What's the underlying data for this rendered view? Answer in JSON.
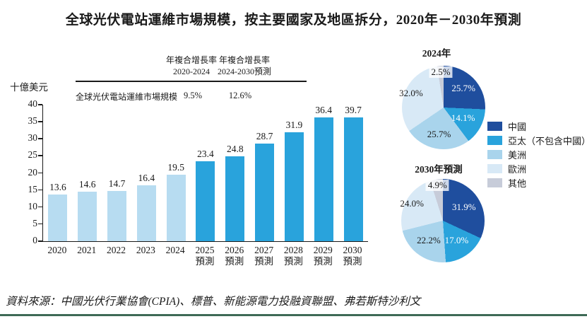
{
  "title": "全球光伏電站運維市場規模，按主要國家及地區拆分，2020年－2030年預測",
  "cagr_table": {
    "row_label": "全球光伏電站運維市場規模",
    "columns": [
      {
        "line1": "年複合增長率",
        "line2": "2020-2024",
        "value": "9.5%"
      },
      {
        "line1": "年複合增長率",
        "line2": "2024-2030預測",
        "value": "12.6%"
      }
    ]
  },
  "chart_data": [
    {
      "type": "bar",
      "title": "全球光伏電站運維市場規模",
      "ylabel": "十億美元",
      "ylim": [
        0,
        40
      ],
      "yticks": [
        0,
        5,
        10,
        15,
        20,
        25,
        30,
        35,
        40
      ],
      "grid": false,
      "categories": [
        "2020",
        "2021",
        "2022",
        "2023",
        "2024",
        "2025",
        "2026",
        "2027",
        "2028",
        "2029",
        "2030"
      ],
      "category_sublabels": [
        "",
        "",
        "",
        "",
        "",
        "預測",
        "預測",
        "預測",
        "預測",
        "預測",
        "預測"
      ],
      "values": [
        13.6,
        14.6,
        14.7,
        16.4,
        19.5,
        23.4,
        24.8,
        28.7,
        31.9,
        36.4,
        39.7
      ],
      "value_labels": [
        "13.6",
        "14.6",
        "14.7",
        "16.4",
        "19.5",
        "23.4",
        "24.8",
        "28.7",
        "31.9",
        "36.4",
        "39.7"
      ],
      "historical_count": 5
    },
    {
      "type": "pie",
      "title": "2024年",
      "labels": [
        "中國",
        "亞太（不包含中國）",
        "美洲",
        "歐洲",
        "其他"
      ],
      "values": [
        25.7,
        14.1,
        25.7,
        32.0,
        2.5
      ],
      "value_labels": [
        "25.7%",
        "14.1%",
        "25.7%",
        "32.0%",
        "2.5%"
      ]
    },
    {
      "type": "pie",
      "title": "2030年預測",
      "labels": [
        "中國",
        "亞太（不包含中國）",
        "美洲",
        "歐洲",
        "其他"
      ],
      "values": [
        31.9,
        17.0,
        22.2,
        24.0,
        4.9
      ],
      "value_labels": [
        "31.9%",
        "17.0%",
        "22.2%",
        "24.0%",
        "4.9%"
      ]
    }
  ],
  "legend": {
    "position": "right",
    "items": [
      "中國",
      "亞太（不包含中國）",
      "美洲",
      "歐洲",
      "其他"
    ]
  },
  "colors": {
    "bar_historical": "#b7dcf1",
    "bar_forecast": "#29a3dc",
    "pie_slices": [
      "#1f4e9e",
      "#29a3dc",
      "#a9d4ec",
      "#d8e9f6",
      "#c7ccd9"
    ],
    "axis": "#1a1a1a",
    "bottom_rule": "#3e6a56"
  },
  "source": "資料來源：中國光伏行業協會(CPIA)、標普、新能源電力投融資聯盟、弗若斯特沙利文"
}
